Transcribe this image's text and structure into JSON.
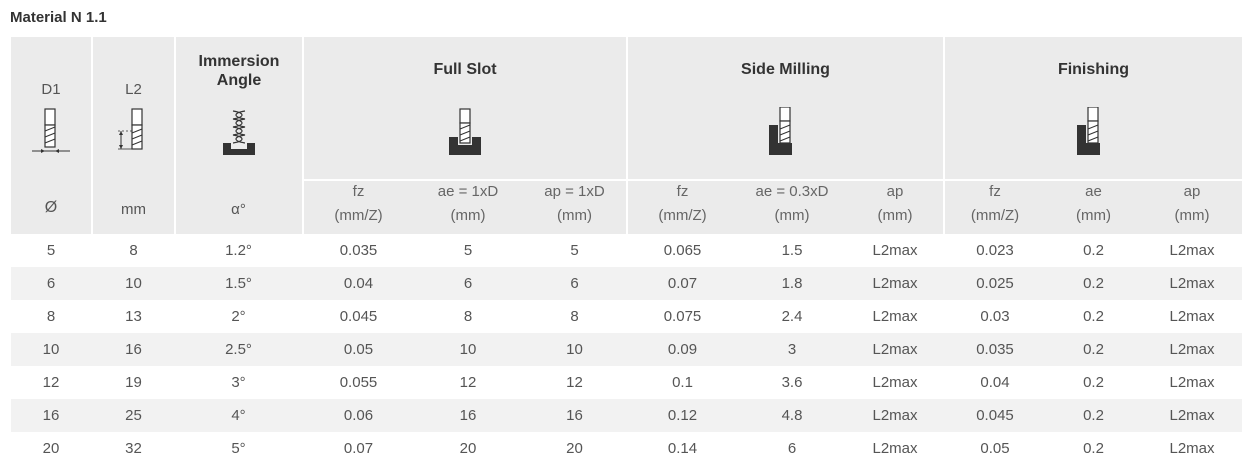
{
  "title": "Material N 1.1",
  "header": {
    "d1": {
      "label": "D1",
      "unit": "Ø",
      "icon": "diameter-diagram-icon"
    },
    "l2": {
      "label": "L2",
      "unit": "mm",
      "icon": "length-diagram-icon"
    },
    "immersion": {
      "label_line1": "Immersion",
      "label_line2": "Angle",
      "unit": "α°",
      "icon": "ramping-diagram-icon"
    },
    "full_slot": {
      "label": "Full Slot",
      "icon": "full-slot-diagram-icon",
      "cols": [
        {
          "l1": "fz",
          "l2": "(mm/Z)"
        },
        {
          "l1": "ae = 1xD",
          "l2": "(mm)"
        },
        {
          "l1": "ap = 1xD",
          "l2": "(mm)"
        }
      ]
    },
    "side_milling": {
      "label": "Side Milling",
      "icon": "side-milling-diagram-icon",
      "cols": [
        {
          "l1": "fz",
          "l2": "(mm/Z)"
        },
        {
          "l1": "ae = 0.3xD",
          "l2": "(mm)"
        },
        {
          "l1": "ap",
          "l2": "(mm)"
        }
      ]
    },
    "finishing": {
      "label": "Finishing",
      "icon": "finishing-diagram-icon",
      "cols": [
        {
          "l1": "fz",
          "l2": "(mm/Z)"
        },
        {
          "l1": "ae",
          "l2": "(mm)"
        },
        {
          "l1": "ap",
          "l2": "(mm)"
        }
      ]
    }
  },
  "rows": [
    [
      "5",
      "8",
      "1.2°",
      "0.035",
      "5",
      "5",
      "0.065",
      "1.5",
      "L2max",
      "0.023",
      "0.2",
      "L2max"
    ],
    [
      "6",
      "10",
      "1.5°",
      "0.04",
      "6",
      "6",
      "0.07",
      "1.8",
      "L2max",
      "0.025",
      "0.2",
      "L2max"
    ],
    [
      "8",
      "13",
      "2°",
      "0.045",
      "8",
      "8",
      "0.075",
      "2.4",
      "L2max",
      "0.03",
      "0.2",
      "L2max"
    ],
    [
      "10",
      "16",
      "2.5°",
      "0.05",
      "10",
      "10",
      "0.09",
      "3",
      "L2max",
      "0.035",
      "0.2",
      "L2max"
    ],
    [
      "12",
      "19",
      "3°",
      "0.055",
      "12",
      "12",
      "0.1",
      "3.6",
      "L2max",
      "0.04",
      "0.2",
      "L2max"
    ],
    [
      "16",
      "25",
      "4°",
      "0.06",
      "16",
      "16",
      "0.12",
      "4.8",
      "L2max",
      "0.045",
      "0.2",
      "L2max"
    ],
    [
      "20",
      "32",
      "5°",
      "0.07",
      "20",
      "20",
      "0.14",
      "6",
      "L2max",
      "0.05",
      "0.2",
      "L2max"
    ]
  ]
}
